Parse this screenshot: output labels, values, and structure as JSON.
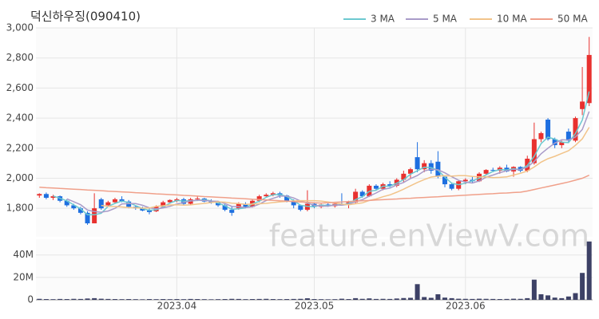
{
  "chart_data": {
    "type": "candlestick",
    "title": "덕신하우징(090410)",
    "watermark": "feature.enViewV.com",
    "up_color": "#e8312f",
    "down_color": "#1e6fe0",
    "grid": true,
    "categories": [
      null,
      null,
      null,
      null,
      null,
      null,
      null,
      null,
      null,
      null,
      null,
      null,
      null,
      null,
      null,
      null,
      null,
      null,
      null,
      null,
      "2023.04",
      null,
      null,
      null,
      null,
      null,
      null,
      null,
      null,
      null,
      null,
      null,
      null,
      null,
      null,
      null,
      null,
      null,
      null,
      null,
      "2023.05",
      null,
      null,
      null,
      null,
      null,
      null,
      null,
      null,
      null,
      null,
      null,
      null,
      null,
      null,
      null,
      null,
      null,
      null,
      null,
      null,
      null,
      "2023.06",
      null,
      null,
      null,
      null,
      null,
      null,
      null,
      null,
      null,
      null,
      null,
      null,
      null,
      null,
      null,
      null,
      null,
      null
    ],
    "open": [
      1885,
      1895,
      1870,
      1880,
      1850,
      1820,
      1800,
      1770,
      1700,
      1860,
      1820,
      1840,
      1860,
      1845,
      1810,
      1800,
      1785,
      1780,
      1810,
      1840,
      1850,
      1860,
      1830,
      1860,
      1865,
      1845,
      1840,
      1820,
      1790,
      1800,
      1830,
      1810,
      1850,
      1880,
      1890,
      1900,
      1885,
      1850,
      1820,
      1790,
      1830,
      1810,
      1825,
      1815,
      1830,
      1825,
      1840,
      1910,
      1880,
      1950,
      1930,
      1960,
      1950,
      1990,
      2030,
      2140,
      2060,
      2100,
      2110,
      2010,
      1960,
      1930,
      1980,
      1990,
      1980,
      2030,
      2055,
      2050,
      2070,
      2045,
      2075,
      2050,
      2100,
      2260,
      2390,
      2260,
      2220,
      2310,
      2250,
      2460,
      2500
    ],
    "high": [
      1900,
      1905,
      1890,
      1885,
      1860,
      1830,
      1810,
      1780,
      1900,
      1870,
      1850,
      1870,
      1880,
      1855,
      1815,
      1810,
      1800,
      1820,
      1850,
      1860,
      1870,
      1870,
      1870,
      1880,
      1870,
      1860,
      1850,
      1830,
      1810,
      1840,
      1840,
      1860,
      1890,
      1900,
      1910,
      1910,
      1890,
      1860,
      1825,
      1920,
      1840,
      1830,
      1840,
      1840,
      1900,
      1850,
      1930,
      1920,
      1960,
      1960,
      1970,
      1980,
      2000,
      2050,
      2070,
      2240,
      2120,
      2120,
      2180,
      2020,
      1970,
      1990,
      2000,
      2010,
      2040,
      2060,
      2070,
      2080,
      2090,
      2080,
      2080,
      2150,
      2370,
      2310,
      2400,
      2270,
      2250,
      2330,
      2410,
      2740,
      2940
    ],
    "low": [
      1870,
      1860,
      1855,
      1840,
      1810,
      1790,
      1760,
      1690,
      1700,
      1790,
      1810,
      1830,
      1840,
      1800,
      1790,
      1780,
      1760,
      1775,
      1800,
      1830,
      1840,
      1820,
      1825,
      1850,
      1840,
      1830,
      1810,
      1780,
      1750,
      1790,
      1800,
      1805,
      1840,
      1870,
      1880,
      1870,
      1840,
      1800,
      1780,
      1780,
      1800,
      1800,
      1810,
      1805,
      1820,
      1800,
      1830,
      1870,
      1875,
      1920,
      1920,
      1940,
      1940,
      1970,
      2000,
      2040,
      2040,
      2030,
      2000,
      1940,
      1920,
      1920,
      1960,
      1970,
      1975,
      2020,
      2040,
      2030,
      2040,
      2010,
      2040,
      2040,
      2090,
      2240,
      2250,
      2200,
      2200,
      2240,
      2240,
      2420,
      2480
    ],
    "close": [
      1895,
      1870,
      1880,
      1850,
      1820,
      1800,
      1770,
      1700,
      1800,
      1800,
      1840,
      1860,
      1845,
      1810,
      1800,
      1785,
      1775,
      1810,
      1840,
      1855,
      1860,
      1830,
      1860,
      1865,
      1845,
      1840,
      1820,
      1790,
      1770,
      1830,
      1810,
      1850,
      1880,
      1890,
      1900,
      1885,
      1850,
      1820,
      1790,
      1830,
      1810,
      1825,
      1815,
      1830,
      1825,
      1840,
      1910,
      1880,
      1950,
      1930,
      1960,
      1950,
      1990,
      2030,
      2060,
      2060,
      2100,
      2050,
      2010,
      1960,
      1930,
      1980,
      1990,
      1980,
      2030,
      2055,
      2050,
      2070,
      2045,
      2075,
      2050,
      2130,
      2260,
      2300,
      2260,
      2220,
      2240,
      2250,
      2400,
      2510,
      2820
    ],
    "ylim": [
      1610,
      3000
    ],
    "yticks": [
      {
        "value": 1800,
        "label": "1,800"
      },
      {
        "value": 2000,
        "label": "2,000"
      },
      {
        "value": 2200,
        "label": "2,200"
      },
      {
        "value": 2400,
        "label": "2,400"
      },
      {
        "value": 2600,
        "label": "2,600"
      },
      {
        "value": 2800,
        "label": "2,800"
      },
      {
        "value": 3000,
        "label": "3,000"
      }
    ],
    "ma": [
      {
        "name": "3 MA",
        "color": "#6cc9d0",
        "values": [
          null,
          null,
          1882,
          1867,
          1850,
          1823,
          1797,
          1757,
          1757,
          1767,
          1813,
          1833,
          1848,
          1838,
          1818,
          1798,
          1787,
          1790,
          1808,
          1835,
          1852,
          1848,
          1850,
          1852,
          1857,
          1850,
          1835,
          1817,
          1793,
          1797,
          1803,
          1830,
          1847,
          1873,
          1890,
          1892,
          1878,
          1852,
          1820,
          1813,
          1810,
          1822,
          1817,
          1823,
          1823,
          1832,
          1858,
          1877,
          1913,
          1920,
          1947,
          1947,
          1967,
          1990,
          2027,
          2050,
          2073,
          2070,
          2053,
          2007,
          1967,
          1957,
          1967,
          1983,
          2000,
          2022,
          2045,
          2058,
          2055,
          2063,
          2057,
          2085,
          2147,
          2230,
          2273,
          2260,
          2240,
          2237,
          2297,
          2387,
          2577
        ]
      },
      {
        "name": "5 MA",
        "color": "#a99bc9",
        "values": [
          null,
          null,
          null,
          null,
          1863,
          1844,
          1824,
          1788,
          1778,
          1774,
          1782,
          1800,
          1829,
          1831,
          1831,
          1820,
          1803,
          1796,
          1802,
          1813,
          1828,
          1839,
          1849,
          1854,
          1852,
          1848,
          1846,
          1832,
          1813,
          1810,
          1804,
          1810,
          1828,
          1852,
          1866,
          1881,
          1881,
          1869,
          1849,
          1835,
          1820,
          1815,
          1814,
          1822,
          1821,
          1827,
          1844,
          1857,
          1881,
          1902,
          1926,
          1934,
          1956,
          1972,
          1998,
          2018,
          2048,
          2060,
          2056,
          2036,
          2010,
          1986,
          1974,
          1968,
          1982,
          2007,
          2021,
          2037,
          2050,
          2059,
          2058,
          2074,
          2112,
          2163,
          2200,
          2234,
          2256,
          2254,
          2274,
          2324,
          2444
        ]
      },
      {
        "name": "10 MA",
        "color": "#f2c48a",
        "values": [
          null,
          null,
          null,
          null,
          null,
          null,
          null,
          null,
          null,
          1819,
          1813,
          1812,
          1809,
          1805,
          1803,
          1801,
          1802,
          1813,
          1817,
          1822,
          1824,
          1821,
          1823,
          1828,
          1833,
          1838,
          1843,
          1841,
          1834,
          1831,
          1826,
          1828,
          1830,
          1833,
          1838,
          1843,
          1846,
          1849,
          1851,
          1851,
          1851,
          1848,
          1842,
          1836,
          1828,
          1824,
          1830,
          1836,
          1852,
          1862,
          1877,
          1889,
          1907,
          1927,
          1950,
          1972,
          1991,
          2008,
          2014,
          2017,
          2014,
          2017,
          2017,
          2012,
          2009,
          2009,
          2004,
          2006,
          2009,
          2021,
          2033,
          2048,
          2075,
          2107,
          2130,
          2146,
          2165,
          2183,
          2219,
          2262,
          2339
        ]
      },
      {
        "name": "50 MA",
        "color": "#f0a08a",
        "values": [
          1940,
          1937,
          1935,
          1932,
          1930,
          1927,
          1925,
          1922,
          1920,
          1917,
          1914,
          1912,
          1909,
          1907,
          1904,
          1902,
          1899,
          1896,
          1894,
          1891,
          1889,
          1886,
          1884,
          1881,
          1878,
          1876,
          1873,
          1871,
          1868,
          1866,
          1863,
          1860,
          1858,
          1855,
          1853,
          1850,
          1848,
          1845,
          1842,
          1840,
          1837,
          1835,
          1837,
          1840,
          1842,
          1845,
          1847,
          1850,
          1852,
          1855,
          1857,
          1860,
          1862,
          1865,
          1867,
          1870,
          1872,
          1875,
          1877,
          1880,
          1882,
          1885,
          1887,
          1890,
          1892,
          1895,
          1897,
          1900,
          1902,
          1905,
          1907,
          1915,
          1925,
          1935,
          1945,
          1955,
          1965,
          1975,
          1987,
          2000,
          2020
        ]
      }
    ],
    "volume": {
      "color": "#3d4166",
      "ylim": [
        0,
        54000000
      ],
      "yticks": [
        0,
        {
          "value": 20000000,
          "label": "20M"
        },
        {
          "value": 40000000,
          "label": "40M"
        }
      ],
      "values": [
        900000,
        700000,
        600000,
        800000,
        700000,
        900000,
        800000,
        1200000,
        1500000,
        1000000,
        800000,
        700000,
        600000,
        700000,
        600000,
        500000,
        700000,
        600000,
        700000,
        600000,
        700000,
        600000,
        800000,
        700000,
        600000,
        500000,
        600000,
        700000,
        900000,
        800000,
        600000,
        700000,
        800000,
        900000,
        700000,
        600000,
        700000,
        800000,
        900000,
        1400000,
        700000,
        600000,
        500000,
        600000,
        1000000,
        700000,
        1500000,
        900000,
        1300000,
        800000,
        900000,
        800000,
        1200000,
        1600000,
        1800000,
        14000000,
        2500000,
        1800000,
        5000000,
        2000000,
        1500000,
        1000000,
        900000,
        800000,
        1000000,
        900000,
        800000,
        700000,
        800000,
        1000000,
        900000,
        1500000,
        18000000,
        5000000,
        4000000,
        2000000,
        1500000,
        3000000,
        6000000,
        24000000,
        52000000
      ]
    }
  }
}
